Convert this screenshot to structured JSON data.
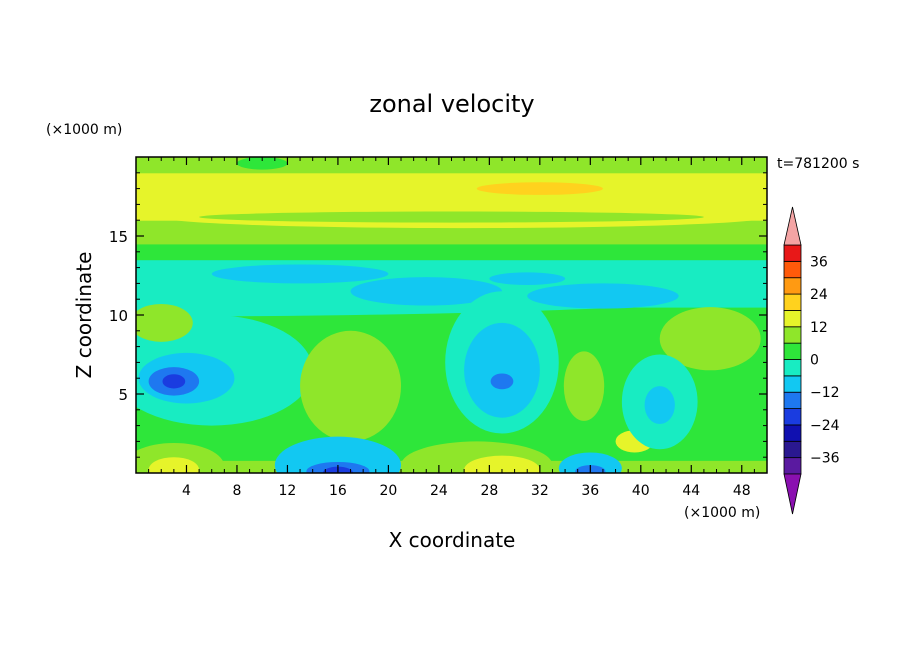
{
  "chart_data": {
    "type": "heatmap",
    "title": "zonal velocity",
    "xlabel": "X coordinate",
    "ylabel": "Z coordinate",
    "x_unit": "(×1000 m)",
    "y_unit": "(×1000 m)",
    "time_label": "t=781200 s",
    "xlim": [
      0,
      50
    ],
    "ylim": [
      0,
      20
    ],
    "x_ticks": [
      4,
      8,
      12,
      16,
      20,
      24,
      28,
      32,
      36,
      40,
      44,
      48
    ],
    "y_ticks": [
      5,
      10,
      15
    ],
    "colorbar": {
      "min": -42,
      "max": 42,
      "step": 6,
      "tick_values": [
        -36,
        -24,
        -12,
        0,
        12,
        24,
        36
      ],
      "tick_labels": [
        "−36",
        "−24",
        "−12",
        "0",
        "12",
        "24",
        "36"
      ],
      "over_color": "#f4a4a4",
      "under_color": "#8a10b0",
      "levels": [
        {
          "from": -42,
          "to": -36,
          "color": "#5a1aa0"
        },
        {
          "from": -36,
          "to": -30,
          "color": "#2a1890"
        },
        {
          "from": -30,
          "to": -24,
          "color": "#1010b0"
        },
        {
          "from": -24,
          "to": -18,
          "color": "#1a3ce0"
        },
        {
          "from": -18,
          "to": -12,
          "color": "#1e78f0"
        },
        {
          "from": -12,
          "to": -6,
          "color": "#12c8f2"
        },
        {
          "from": -6,
          "to": 0,
          "color": "#18ecc2"
        },
        {
          "from": 0,
          "to": 6,
          "color": "#2ee63a"
        },
        {
          "from": 6,
          "to": 12,
          "color": "#8fe62a"
        },
        {
          "from": 12,
          "to": 18,
          "color": "#e6f42a"
        },
        {
          "from": 18,
          "to": 24,
          "color": "#ffd21e"
        },
        {
          "from": 24,
          "to": 30,
          "color": "#ff9a12"
        },
        {
          "from": 30,
          "to": 36,
          "color": "#ff5a0a"
        },
        {
          "from": 36,
          "to": 42,
          "color": "#e81818"
        }
      ]
    },
    "base_levels": [
      {
        "from": 0,
        "to": 0.8,
        "value": 6
      },
      {
        "from": 0.8,
        "to": 2.0,
        "value": 3
      },
      {
        "from": 2.0,
        "to": 10.5,
        "value": 3
      },
      {
        "from": 10.5,
        "to": 11.5,
        "value": -3
      },
      {
        "from": 11.5,
        "to": 13.5,
        "value": -3
      },
      {
        "from": 13.5,
        "to": 14.5,
        "value": 3
      },
      {
        "from": 14.5,
        "to": 16.0,
        "value": 9
      },
      {
        "from": 16.0,
        "to": 19.0,
        "value": 15
      },
      {
        "from": 19.0,
        "to": 20.0,
        "value": 9
      }
    ],
    "features": [
      {
        "x": 0,
        "z": 11.5,
        "rx": 50,
        "rz": 1.6,
        "value": -3
      },
      {
        "x": 26,
        "z": 16.2,
        "rx": 24,
        "rz": 0.7,
        "value": 15
      },
      {
        "x": 32,
        "z": 18.0,
        "rx": 5,
        "rz": 0.4,
        "value": 21
      },
      {
        "x": 25,
        "z": 16.2,
        "rx": 20,
        "rz": 0.35,
        "value": 9
      },
      {
        "x": 10,
        "z": 19.6,
        "rx": 2,
        "rz": 0.4,
        "value": 3
      },
      {
        "x": 13,
        "z": 12.6,
        "rx": 7,
        "rz": 0.6,
        "value": -9
      },
      {
        "x": 23,
        "z": 11.5,
        "rx": 6,
        "rz": 0.9,
        "value": -9
      },
      {
        "x": 37,
        "z": 11.2,
        "rx": 6,
        "rz": 0.8,
        "value": -9
      },
      {
        "x": 31,
        "z": 12.3,
        "rx": 3,
        "rz": 0.4,
        "value": -9
      },
      {
        "x": 6,
        "z": 6.5,
        "rx": 8,
        "rz": 3.5,
        "value": -3
      },
      {
        "x": 4,
        "z": 6.0,
        "rx": 3.8,
        "rz": 1.6,
        "value": -9
      },
      {
        "x": 3,
        "z": 5.8,
        "rx": 2,
        "rz": 0.9,
        "value": -15
      },
      {
        "x": 3,
        "z": 5.8,
        "rx": 0.9,
        "rz": 0.45,
        "value": -21
      },
      {
        "x": 29,
        "z": 7,
        "rx": 4.5,
        "rz": 4.5,
        "value": -3
      },
      {
        "x": 29,
        "z": 6.5,
        "rx": 3,
        "rz": 3,
        "value": -9
      },
      {
        "x": 29,
        "z": 5.8,
        "rx": 0.9,
        "rz": 0.5,
        "value": -15
      },
      {
        "x": 17,
        "z": 5.5,
        "rx": 4,
        "rz": 3.5,
        "value": 9
      },
      {
        "x": 35.5,
        "z": 5.5,
        "rx": 1.6,
        "rz": 2.2,
        "value": 9
      },
      {
        "x": 39.5,
        "z": 2.0,
        "rx": 1.5,
        "rz": 0.7,
        "value": 15
      },
      {
        "x": 45.5,
        "z": 8.5,
        "rx": 4,
        "rz": 2,
        "value": 9
      },
      {
        "x": 41.5,
        "z": 4.5,
        "rx": 3,
        "rz": 3,
        "value": -3
      },
      {
        "x": 41.5,
        "z": 4.3,
        "rx": 1.2,
        "rz": 1.2,
        "value": -9
      },
      {
        "x": 2,
        "z": 9.5,
        "rx": 2.5,
        "rz": 1.2,
        "value": 9
      },
      {
        "x": 3,
        "z": 0.4,
        "rx": 4,
        "rz": 1.5,
        "value": 9
      },
      {
        "x": 3,
        "z": 0.2,
        "rx": 2,
        "rz": 0.8,
        "value": 15
      },
      {
        "x": 27,
        "z": 0.5,
        "rx": 6,
        "rz": 1.5,
        "value": 9
      },
      {
        "x": 29,
        "z": 0.2,
        "rx": 3,
        "rz": 0.9,
        "value": 15
      },
      {
        "x": 16,
        "z": 0.5,
        "rx": 5,
        "rz": 1.8,
        "value": -9
      },
      {
        "x": 16,
        "z": 0.1,
        "rx": 2.5,
        "rz": 0.6,
        "value": -15
      },
      {
        "x": 16,
        "z": 0.0,
        "rx": 1.2,
        "rz": 0.4,
        "value": -21
      },
      {
        "x": 36,
        "z": 0.3,
        "rx": 2.5,
        "rz": 1.0,
        "value": -9
      },
      {
        "x": 36,
        "z": 0.1,
        "rx": 1.2,
        "rz": 0.4,
        "value": -15
      }
    ]
  }
}
